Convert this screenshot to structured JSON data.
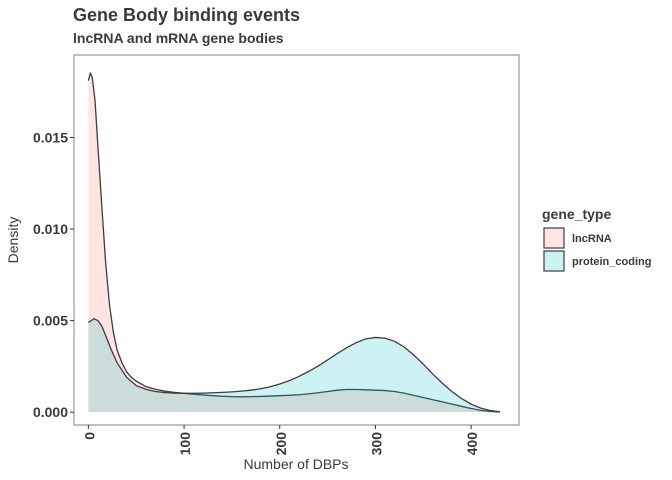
{
  "chart_data": {
    "type": "area",
    "title": "Gene Body binding events",
    "subtitle": "lncRNA and mRNA gene bodies",
    "xlabel": "Number of DBPs",
    "ylabel": "Density",
    "xlim": [
      -15,
      450
    ],
    "ylim": [
      -0.0007,
      0.0195
    ],
    "xticks": [
      0,
      100,
      200,
      300,
      400
    ],
    "xtick_labels": [
      "0",
      "100",
      "200",
      "300",
      "400"
    ],
    "yticks": [
      0.0,
      0.005,
      0.01,
      0.015
    ],
    "ytick_labels": [
      "0.000",
      "0.005",
      "0.010",
      "0.015"
    ],
    "grid": false,
    "legend": {
      "title": "gene_type",
      "position": "right"
    },
    "series": [
      {
        "name": "lncRNA",
        "fill": "#f8766d",
        "x": [
          0,
          2,
          4,
          7,
          10,
          14,
          18,
          22,
          26,
          30,
          35,
          40,
          45,
          50,
          60,
          70,
          80,
          90,
          100,
          110,
          120,
          130,
          140,
          150,
          160,
          170,
          180,
          190,
          200,
          210,
          220,
          230,
          240,
          250,
          260,
          270,
          280,
          290,
          300,
          310,
          320,
          330,
          340,
          350,
          360,
          370,
          380,
          390,
          400,
          410,
          420,
          430
        ],
        "y": [
          0.0181,
          0.0185,
          0.0183,
          0.017,
          0.0145,
          0.0113,
          0.0082,
          0.0059,
          0.0044,
          0.0034,
          0.0027,
          0.0022,
          0.0019,
          0.0017,
          0.0014,
          0.00125,
          0.00115,
          0.00108,
          0.00103,
          0.00098,
          0.00094,
          0.0009,
          0.00087,
          0.00085,
          0.00084,
          0.00085,
          0.00086,
          0.00088,
          0.0009,
          0.00092,
          0.00095,
          0.001,
          0.00106,
          0.00113,
          0.0012,
          0.00124,
          0.00124,
          0.00122,
          0.0012,
          0.00118,
          0.00113,
          0.00104,
          0.00092,
          0.0008,
          0.00068,
          0.00056,
          0.00044,
          0.00032,
          0.0002,
          0.0001,
          4e-05,
          1e-05
        ]
      },
      {
        "name": "protein_coding",
        "fill": "#00bfc4",
        "x": [
          0,
          3,
          6,
          10,
          14,
          18,
          24,
          30,
          40,
          50,
          60,
          70,
          80,
          90,
          100,
          110,
          120,
          130,
          140,
          150,
          160,
          170,
          180,
          190,
          200,
          210,
          220,
          230,
          240,
          250,
          260,
          270,
          280,
          290,
          300,
          310,
          320,
          330,
          340,
          350,
          360,
          370,
          380,
          390,
          400,
          410,
          420,
          430
        ],
        "y": [
          0.0049,
          0.005,
          0.0051,
          0.005,
          0.0047,
          0.0042,
          0.0034,
          0.0027,
          0.0019,
          0.00145,
          0.00125,
          0.00113,
          0.00107,
          0.00104,
          0.00103,
          0.00103,
          0.00104,
          0.00106,
          0.00108,
          0.00111,
          0.00115,
          0.0012,
          0.00128,
          0.00139,
          0.00154,
          0.00172,
          0.00195,
          0.00222,
          0.00252,
          0.00285,
          0.0032,
          0.00352,
          0.0038,
          0.004,
          0.00408,
          0.00404,
          0.00387,
          0.00356,
          0.00312,
          0.00262,
          0.00208,
          0.00158,
          0.00112,
          0.00074,
          0.00044,
          0.00022,
          9e-05,
          2e-05
        ]
      }
    ]
  }
}
